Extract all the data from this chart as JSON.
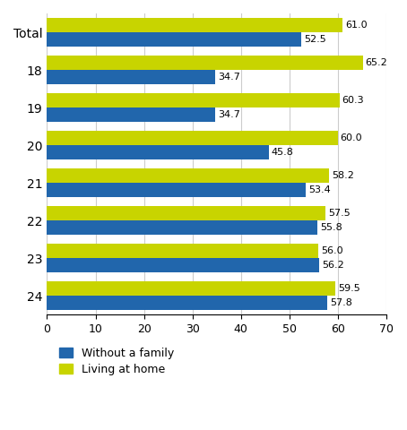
{
  "categories": [
    "Total",
    "18",
    "19",
    "20",
    "21",
    "22",
    "23",
    "24"
  ],
  "without_family": [
    52.5,
    34.7,
    34.7,
    45.8,
    53.4,
    55.8,
    56.2,
    57.8
  ],
  "living_at_home": [
    61.0,
    65.2,
    60.3,
    60.0,
    58.2,
    57.5,
    56.0,
    59.5
  ],
  "color_without_family": "#2166ac",
  "color_living_at_home": "#c8d400",
  "xlim": [
    0,
    70
  ],
  "xticks": [
    0,
    10,
    20,
    30,
    40,
    50,
    60,
    70
  ],
  "bar_height": 0.38,
  "legend_labels": [
    "Without a family",
    "Living at home"
  ],
  "background_color": "#ffffff",
  "grid_color": "#cccccc",
  "label_fontsize": 9,
  "value_fontsize": 8,
  "ylabel_fontsize": 10,
  "xlabel_fontsize": 9
}
